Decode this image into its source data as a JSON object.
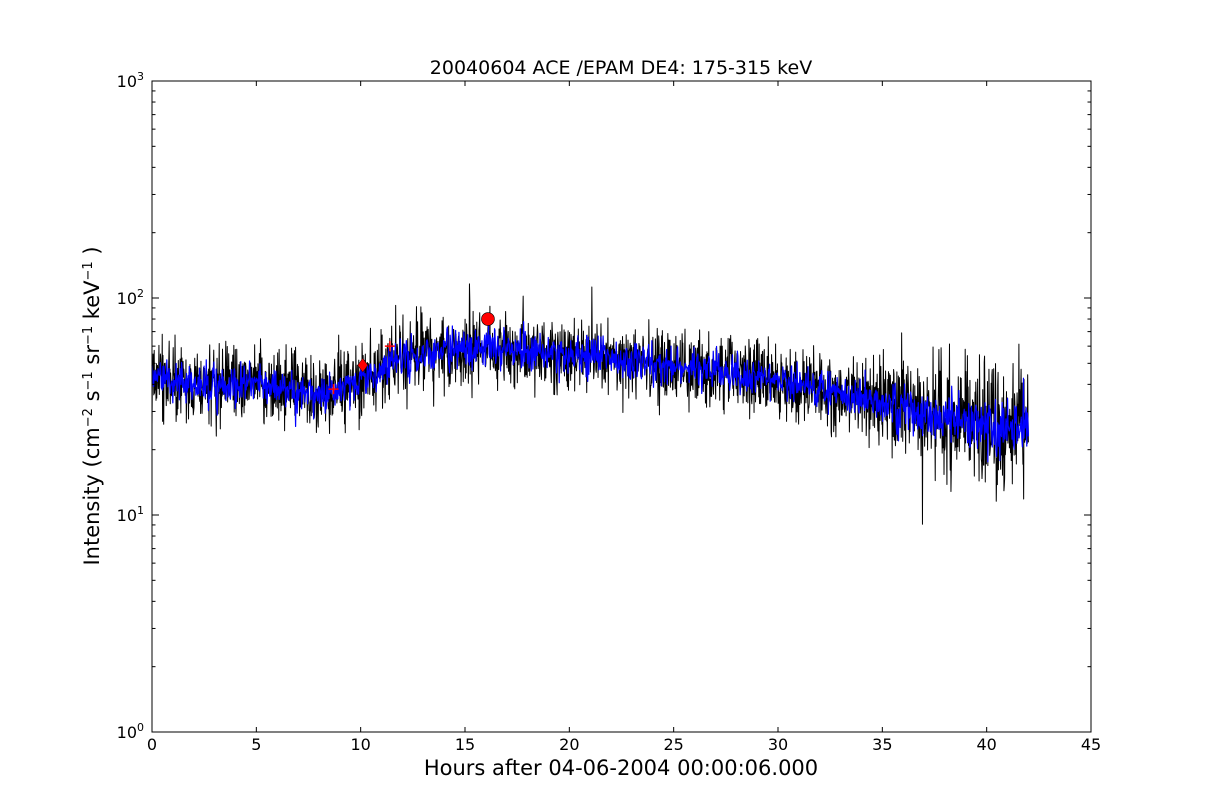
{
  "chart_data": {
    "type": "line",
    "title": "20040604 ACE /EPAM DE4: 175-315 keV",
    "xlabel": "Hours after 04-06-2004 00:00:06.000",
    "ylabel": "Intensity (cm⁻² s⁻¹ sr⁻¹ keV⁻¹ )",
    "ylabel_parts": {
      "base": "Intensity (cm",
      "e1": "−2",
      "s": " s",
      "e2": "−1",
      "sr": " sr",
      "e3": "−1",
      "kev": " keV",
      "e4": "−1",
      "end": " )"
    },
    "xlim": [
      0,
      45
    ],
    "ylim": [
      1,
      1000
    ],
    "yscale": "log",
    "x_ticks": [
      "0",
      "5",
      "10",
      "15",
      "20",
      "25",
      "30",
      "35",
      "40",
      "45"
    ],
    "y_ticks": [
      {
        "base": "10",
        "exp": "0"
      },
      {
        "base": "10",
        "exp": "1"
      },
      {
        "base": "10",
        "exp": "2"
      },
      {
        "base": "10",
        "exp": "3"
      }
    ],
    "grid": false,
    "legend": "none",
    "series": [
      {
        "role": "raw",
        "color": "#000000",
        "x": [
          0,
          1,
          2,
          3,
          4,
          5,
          6,
          7,
          8,
          9,
          10,
          11,
          12,
          13,
          14,
          15,
          16,
          17,
          18,
          19,
          20,
          21,
          22,
          23,
          24,
          25,
          26,
          27,
          28,
          29,
          30,
          31,
          32,
          33,
          34,
          35,
          36,
          37,
          38,
          39,
          40,
          41,
          42
        ],
        "y": [
          44,
          42,
          40,
          39,
          40,
          41,
          39,
          37,
          37,
          37,
          42,
          47,
          52,
          55,
          57,
          58,
          59,
          58,
          57,
          56,
          55,
          54,
          53,
          52,
          50,
          48,
          47,
          46,
          45,
          43,
          42,
          40,
          38,
          36,
          34,
          32,
          31,
          29,
          28,
          27,
          26,
          26,
          25
        ]
      },
      {
        "role": "smoothed",
        "color": "#0000ff",
        "x": [
          0,
          1,
          2,
          3,
          4,
          5,
          6,
          7,
          8,
          9,
          10,
          11,
          12,
          13,
          14,
          15,
          16,
          17,
          18,
          19,
          20,
          21,
          22,
          23,
          24,
          25,
          26,
          27,
          28,
          29,
          30,
          31,
          32,
          33,
          34,
          35,
          36,
          37,
          38,
          39,
          40,
          41,
          42
        ],
        "y": [
          44,
          42,
          40,
          39,
          40,
          41,
          39,
          37,
          37,
          37,
          42,
          47,
          52,
          55,
          57,
          58,
          59,
          58,
          57,
          56,
          55,
          54,
          53,
          52,
          50,
          48,
          47,
          46,
          45,
          43,
          42,
          40,
          38,
          36,
          34,
          32,
          31,
          29,
          28,
          27,
          26,
          26,
          25
        ]
      }
    ],
    "markers": [
      {
        "shape": "plus",
        "x": 8.7,
        "y": 38,
        "color": "#ff0000"
      },
      {
        "shape": "diamond",
        "x": 10.1,
        "y": 49,
        "color": "#ff0000"
      },
      {
        "shape": "plus",
        "x": 11.4,
        "y": 60,
        "color": "#ff0000"
      },
      {
        "shape": "circle",
        "x": 16.1,
        "y": 80,
        "color": "#ff0000"
      }
    ]
  }
}
